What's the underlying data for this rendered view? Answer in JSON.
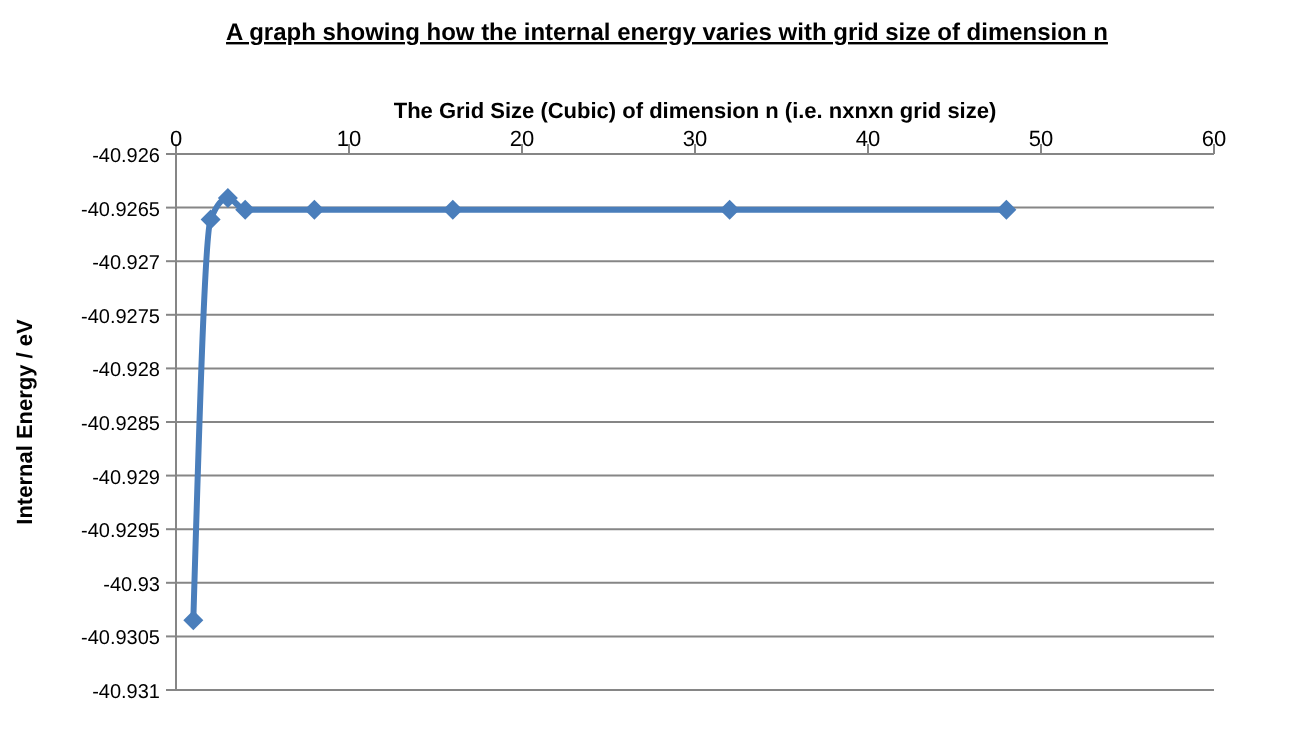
{
  "chart_data": {
    "type": "line",
    "title": "A graph showing how the internal energy varies with grid size of dimension n",
    "xlabel": "The Grid Size (Cubic) of dimension n  (i.e. nxnxn grid size)",
    "ylabel": "Internal Energy / eV",
    "x": [
      1,
      2,
      3,
      4,
      8,
      16,
      32,
      48
    ],
    "series": [
      {
        "color": "#4a7ebb",
        "values": [
          -40.93035,
          -40.92661,
          -40.92641,
          -40.92652,
          -40.92652,
          -40.92652,
          -40.92652,
          -40.92652
        ]
      }
    ],
    "xlim": [
      0,
      60
    ],
    "xticks": [
      0,
      10,
      20,
      30,
      40,
      50,
      60
    ],
    "ylim": [
      -40.931,
      -40.926
    ],
    "yticks": [
      -40.931,
      -40.9305,
      -40.93,
      -40.9295,
      -40.929,
      -40.9285,
      -40.928,
      -40.9275,
      -40.927,
      -40.9265,
      -40.926
    ],
    "grid": "y",
    "marker": "diamond",
    "line_style": "solid"
  }
}
